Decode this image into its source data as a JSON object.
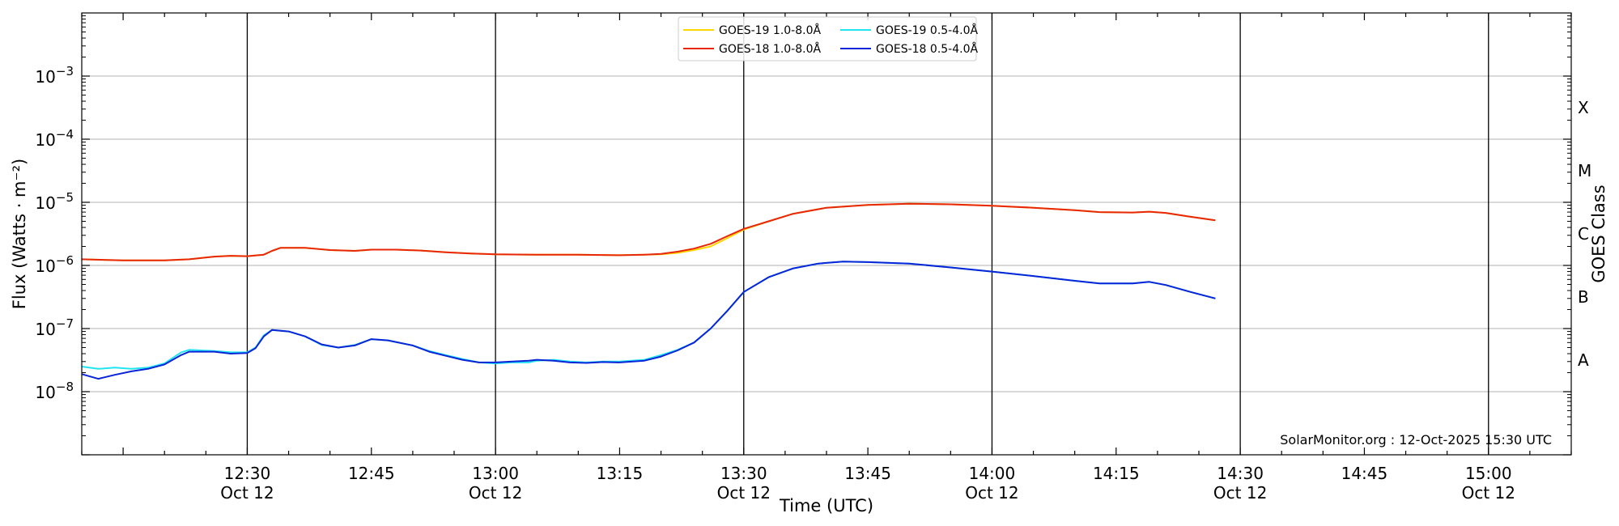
{
  "chart_data": {
    "type": "line",
    "xlabel": "Time (UTC)",
    "ylabel": "Flux (Watts · m⁻²)",
    "y2label": "GOES Class",
    "yscale": "log",
    "ylim": [
      1e-09,
      0.01
    ],
    "xlim": [
      "12:10",
      "15:10"
    ],
    "x_ticks": [
      {
        "time": "12:30",
        "label": "12:30",
        "date": "Oct 12"
      },
      {
        "time": "12:45",
        "label": "12:45",
        "date": ""
      },
      {
        "time": "13:00",
        "label": "13:00",
        "date": "Oct 12"
      },
      {
        "time": "13:15",
        "label": "13:15",
        "date": ""
      },
      {
        "time": "13:30",
        "label": "13:30",
        "date": "Oct 12"
      },
      {
        "time": "13:45",
        "label": "13:45",
        "date": ""
      },
      {
        "time": "14:00",
        "label": "14:00",
        "date": "Oct 12"
      },
      {
        "time": "14:15",
        "label": "14:15",
        "date": ""
      },
      {
        "time": "14:30",
        "label": "14:30",
        "date": "Oct 12"
      },
      {
        "time": "14:45",
        "label": "14:45",
        "date": ""
      },
      {
        "time": "15:00",
        "label": "15:00",
        "date": "Oct 12"
      }
    ],
    "vertical_lines": [
      "12:30",
      "13:00",
      "13:30",
      "14:00",
      "14:30",
      "15:00"
    ],
    "y_ticks": [
      {
        "value": 1e-08,
        "base": "10",
        "exp": "−8"
      },
      {
        "value": 1e-07,
        "base": "10",
        "exp": "−7"
      },
      {
        "value": 1e-06,
        "base": "10",
        "exp": "−6"
      },
      {
        "value": 1e-05,
        "base": "10",
        "exp": "−5"
      },
      {
        "value": 0.0001,
        "base": "10",
        "exp": "−4"
      },
      {
        "value": 0.001,
        "base": "10",
        "exp": "−3"
      }
    ],
    "goes_classes": [
      {
        "label": "A",
        "value": 3.16e-08
      },
      {
        "label": "B",
        "value": 3.16e-07
      },
      {
        "label": "C",
        "value": 3.16e-06
      },
      {
        "label": "M",
        "value": 3.16e-05
      },
      {
        "label": "X",
        "value": 0.000316
      }
    ],
    "legend_position": "top-center",
    "grid": "horizontal",
    "series": [
      {
        "name": "GOES-19 1.0-8.0Å",
        "color": "#ffd700",
        "points": [
          [
            "12:10",
            1.25e-06
          ],
          [
            "12:15",
            1.2e-06
          ],
          [
            "12:20",
            1.2e-06
          ],
          [
            "12:23",
            1.25e-06
          ],
          [
            "12:26",
            1.38e-06
          ],
          [
            "12:28",
            1.42e-06
          ],
          [
            "12:30",
            1.4e-06
          ],
          [
            "12:32",
            1.48e-06
          ],
          [
            "12:33",
            1.7e-06
          ],
          [
            "12:34",
            1.9e-06
          ],
          [
            "12:37",
            1.9e-06
          ],
          [
            "12:40",
            1.75e-06
          ],
          [
            "12:43",
            1.7e-06
          ],
          [
            "12:45",
            1.78e-06
          ],
          [
            "12:48",
            1.78e-06
          ],
          [
            "12:51",
            1.72e-06
          ],
          [
            "12:54",
            1.62e-06
          ],
          [
            "12:57",
            1.55e-06
          ],
          [
            "13:00",
            1.5e-06
          ],
          [
            "13:05",
            1.48e-06
          ],
          [
            "13:10",
            1.48e-06
          ],
          [
            "13:15",
            1.45e-06
          ],
          [
            "13:18",
            1.48e-06
          ],
          [
            "13:20",
            1.5e-06
          ],
          [
            "13:22",
            1.58e-06
          ],
          [
            "13:24",
            1.75e-06
          ],
          [
            "13:26",
            2e-06
          ],
          [
            "13:28",
            2.7e-06
          ],
          [
            "13:30",
            3.7e-06
          ],
          [
            "13:33",
            5e-06
          ],
          [
            "13:36",
            6.6e-06
          ],
          [
            "13:40",
            8.2e-06
          ],
          [
            "13:45",
            9.1e-06
          ],
          [
            "13:50",
            9.5e-06
          ],
          [
            "13:55",
            9.3e-06
          ],
          [
            "14:00",
            8.8e-06
          ],
          [
            "14:05",
            8.2e-06
          ],
          [
            "14:10",
            7.5e-06
          ],
          [
            "14:13",
            7e-06
          ],
          [
            "14:17",
            6.9e-06
          ],
          [
            "14:19",
            7.1e-06
          ],
          [
            "14:21",
            6.8e-06
          ],
          [
            "14:24",
            5.9e-06
          ],
          [
            "14:27",
            5.2e-06
          ]
        ]
      },
      {
        "name": "GOES-18 1.0-8.0Å",
        "color": "#e8260a",
        "points": [
          [
            "12:10",
            1.25e-06
          ],
          [
            "12:15",
            1.2e-06
          ],
          [
            "12:20",
            1.2e-06
          ],
          [
            "12:23",
            1.25e-06
          ],
          [
            "12:26",
            1.38e-06
          ],
          [
            "12:28",
            1.42e-06
          ],
          [
            "12:30",
            1.4e-06
          ],
          [
            "12:32",
            1.48e-06
          ],
          [
            "12:33",
            1.7e-06
          ],
          [
            "12:34",
            1.9e-06
          ],
          [
            "12:37",
            1.9e-06
          ],
          [
            "12:40",
            1.75e-06
          ],
          [
            "12:43",
            1.7e-06
          ],
          [
            "12:45",
            1.78e-06
          ],
          [
            "12:48",
            1.78e-06
          ],
          [
            "12:51",
            1.72e-06
          ],
          [
            "12:54",
            1.62e-06
          ],
          [
            "12:57",
            1.55e-06
          ],
          [
            "13:00",
            1.5e-06
          ],
          [
            "13:05",
            1.48e-06
          ],
          [
            "13:10",
            1.48e-06
          ],
          [
            "13:15",
            1.45e-06
          ],
          [
            "13:18",
            1.48e-06
          ],
          [
            "13:20",
            1.52e-06
          ],
          [
            "13:22",
            1.65e-06
          ],
          [
            "13:24",
            1.85e-06
          ],
          [
            "13:26",
            2.2e-06
          ],
          [
            "13:28",
            2.9e-06
          ],
          [
            "13:30",
            3.8e-06
          ],
          [
            "13:33",
            5e-06
          ],
          [
            "13:36",
            6.6e-06
          ],
          [
            "13:40",
            8.2e-06
          ],
          [
            "13:45",
            9.1e-06
          ],
          [
            "13:50",
            9.5e-06
          ],
          [
            "13:55",
            9.3e-06
          ],
          [
            "14:00",
            8.8e-06
          ],
          [
            "14:05",
            8.2e-06
          ],
          [
            "14:10",
            7.5e-06
          ],
          [
            "14:13",
            7e-06
          ],
          [
            "14:17",
            6.9e-06
          ],
          [
            "14:19",
            7.1e-06
          ],
          [
            "14:21",
            6.8e-06
          ],
          [
            "14:24",
            5.9e-06
          ],
          [
            "14:27",
            5.2e-06
          ]
        ]
      },
      {
        "name": "GOES-19 0.5-4.0Å",
        "color": "#22e5f2",
        "points": [
          [
            "12:10",
            2.5e-08
          ],
          [
            "12:12",
            2.3e-08
          ],
          [
            "12:14",
            2.4e-08
          ],
          [
            "12:16",
            2.3e-08
          ],
          [
            "12:18",
            2.4e-08
          ],
          [
            "12:20",
            2.8e-08
          ],
          [
            "12:22",
            4.2e-08
          ],
          [
            "12:23",
            4.6e-08
          ],
          [
            "12:26",
            4.4e-08
          ],
          [
            "12:28",
            4.2e-08
          ],
          [
            "12:30",
            4.2e-08
          ],
          [
            "12:31",
            5e-08
          ],
          [
            "12:32",
            7.8e-08
          ],
          [
            "12:33",
            9.5e-08
          ],
          [
            "12:35",
            9e-08
          ],
          [
            "12:37",
            7.5e-08
          ],
          [
            "12:39",
            5.5e-08
          ],
          [
            "12:41",
            5e-08
          ],
          [
            "12:43",
            5.5e-08
          ],
          [
            "12:45",
            6.8e-08
          ],
          [
            "12:47",
            6.5e-08
          ],
          [
            "12:50",
            5.4e-08
          ],
          [
            "12:52",
            4.4e-08
          ],
          [
            "12:54",
            3.8e-08
          ],
          [
            "12:56",
            3.3e-08
          ],
          [
            "12:58",
            2.9e-08
          ],
          [
            "13:00",
            2.8e-08
          ],
          [
            "13:02",
            2.9e-08
          ],
          [
            "13:04",
            2.9e-08
          ],
          [
            "13:05",
            3.1e-08
          ],
          [
            "13:07",
            3.2e-08
          ],
          [
            "13:09",
            3e-08
          ],
          [
            "13:11",
            2.9e-08
          ],
          [
            "13:13",
            3e-08
          ],
          [
            "13:15",
            3e-08
          ],
          [
            "13:18",
            3.2e-08
          ],
          [
            "13:20",
            3.8e-08
          ],
          [
            "13:22",
            4.6e-08
          ],
          [
            "13:24",
            6e-08
          ],
          [
            "13:26",
            1e-07
          ],
          [
            "13:28",
            1.9e-07
          ],
          [
            "13:30",
            3.8e-07
          ],
          [
            "13:33",
            6.5e-07
          ],
          [
            "13:36",
            9e-07
          ],
          [
            "13:39",
            1.07e-06
          ],
          [
            "13:42",
            1.15e-06
          ],
          [
            "13:45",
            1.13e-06
          ],
          [
            "13:50",
            1.07e-06
          ],
          [
            "13:55",
            9.3e-07
          ],
          [
            "14:00",
            8e-07
          ],
          [
            "14:05",
            6.8e-07
          ],
          [
            "14:10",
            5.7e-07
          ],
          [
            "14:13",
            5.2e-07
          ],
          [
            "14:17",
            5.2e-07
          ],
          [
            "14:19",
            5.5e-07
          ],
          [
            "14:21",
            4.9e-07
          ],
          [
            "14:24",
            3.8e-07
          ],
          [
            "14:27",
            3e-07
          ]
        ]
      },
      {
        "name": "GOES-18 0.5-4.0Å",
        "color": "#0a24d8",
        "points": [
          [
            "12:10",
            1.9e-08
          ],
          [
            "12:12",
            1.6e-08
          ],
          [
            "12:14",
            1.85e-08
          ],
          [
            "12:16",
            2.1e-08
          ],
          [
            "12:18",
            2.3e-08
          ],
          [
            "12:20",
            2.7e-08
          ],
          [
            "12:22",
            3.8e-08
          ],
          [
            "12:23",
            4.3e-08
          ],
          [
            "12:26",
            4.3e-08
          ],
          [
            "12:28",
            4e-08
          ],
          [
            "12:30",
            4.1e-08
          ],
          [
            "12:31",
            4.9e-08
          ],
          [
            "12:32",
            7.5e-08
          ],
          [
            "12:33",
            9.5e-08
          ],
          [
            "12:35",
            9e-08
          ],
          [
            "12:37",
            7.5e-08
          ],
          [
            "12:39",
            5.6e-08
          ],
          [
            "12:41",
            5e-08
          ],
          [
            "12:43",
            5.4e-08
          ],
          [
            "12:45",
            6.8e-08
          ],
          [
            "12:47",
            6.5e-08
          ],
          [
            "12:50",
            5.4e-08
          ],
          [
            "12:52",
            4.3e-08
          ],
          [
            "12:54",
            3.7e-08
          ],
          [
            "12:56",
            3.2e-08
          ],
          [
            "12:58",
            2.9e-08
          ],
          [
            "13:00",
            2.9e-08
          ],
          [
            "13:02",
            3e-08
          ],
          [
            "13:04",
            3.1e-08
          ],
          [
            "13:05",
            3.2e-08
          ],
          [
            "13:07",
            3.1e-08
          ],
          [
            "13:09",
            2.9e-08
          ],
          [
            "13:11",
            2.85e-08
          ],
          [
            "13:13",
            2.95e-08
          ],
          [
            "13:15",
            2.9e-08
          ],
          [
            "13:18",
            3.1e-08
          ],
          [
            "13:20",
            3.6e-08
          ],
          [
            "13:22",
            4.5e-08
          ],
          [
            "13:24",
            6e-08
          ],
          [
            "13:26",
            1e-07
          ],
          [
            "13:28",
            1.9e-07
          ],
          [
            "13:30",
            3.8e-07
          ],
          [
            "13:33",
            6.5e-07
          ],
          [
            "13:36",
            9e-07
          ],
          [
            "13:39",
            1.07e-06
          ],
          [
            "13:42",
            1.15e-06
          ],
          [
            "13:45",
            1.13e-06
          ],
          [
            "13:50",
            1.07e-06
          ],
          [
            "13:55",
            9.3e-07
          ],
          [
            "14:00",
            8e-07
          ],
          [
            "14:05",
            6.8e-07
          ],
          [
            "14:10",
            5.7e-07
          ],
          [
            "14:13",
            5.2e-07
          ],
          [
            "14:17",
            5.2e-07
          ],
          [
            "14:19",
            5.5e-07
          ],
          [
            "14:21",
            4.9e-07
          ],
          [
            "14:24",
            3.8e-07
          ],
          [
            "14:27",
            3e-07
          ]
        ]
      }
    ],
    "credit": "SolarMonitor.org : 12-Oct-2025 15:30 UTC"
  }
}
